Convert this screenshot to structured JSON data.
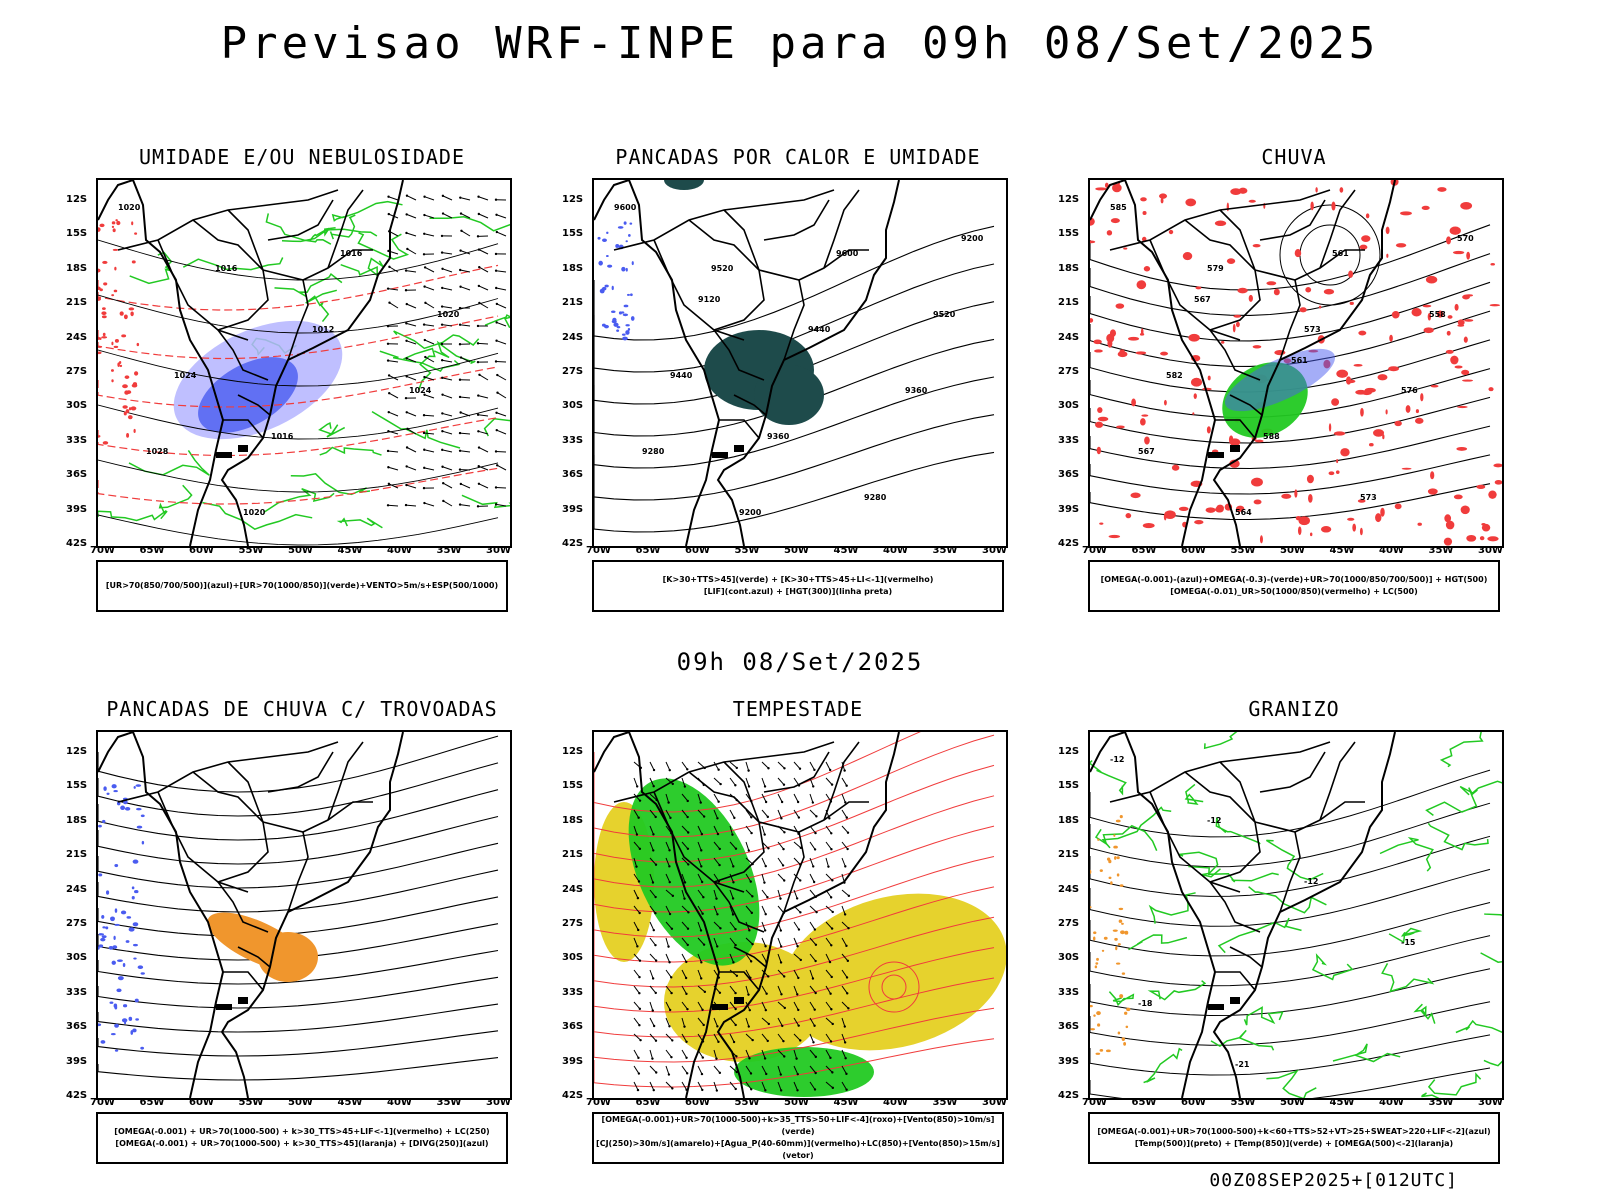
{
  "title": "Previsao WRF-INPE  para 09h 08/Set/2025",
  "subtitle": "09h 08/Set/2025",
  "footer": "00Z08SEP2025+[012UTC]",
  "axes": {
    "lat_labels": [
      "12S",
      "15S",
      "18S",
      "21S",
      "24S",
      "27S",
      "30S",
      "33S",
      "36S",
      "39S",
      "42S"
    ],
    "lon_labels": [
      "70W",
      "65W",
      "60W",
      "55W",
      "50W",
      "45W",
      "40W",
      "35W",
      "30W"
    ]
  },
  "colors": {
    "blue": "#4a5cf0",
    "lightblue": "#b4b4ff",
    "green": "#22c922",
    "red": "#f03c3c",
    "darkteal": "#1e4b4b",
    "orange": "#f0962d",
    "yellow": "#e6d22d",
    "contour": "#000000"
  },
  "panels": [
    {
      "title": "UMIDADE E/OU NEBULOSIDADE",
      "legend": [
        "[UR>70(850/700/500)](azul)+[UR>70(1000/850)](verde)+VENTO>5m/s+ESP(500/1000)"
      ],
      "contour_labels": [
        "1020",
        "1016",
        "1012",
        "1024",
        "1028",
        "1020",
        "1016",
        "1020",
        "1024",
        "1016"
      ]
    },
    {
      "title": "PANCADAS POR CALOR E UMIDADE",
      "legend": [
        "[K>30+TTS>45](verde) + [K>30+TTS>45+LI<-1](vermelho)",
        "[LIF](cont.azul) + [HGT(300)](linha preta)"
      ],
      "contour_labels": [
        "9600",
        "9520",
        "9440",
        "9360",
        "9280",
        "9200",
        "9600",
        "9520",
        "9440",
        "9360",
        "9280",
        "9200",
        "9120"
      ]
    },
    {
      "title": "CHUVA",
      "legend": [
        "[OMEGA(-0.001)-(azul)+OMEGA(-0.3)-(verde)+UR>70(1000/850/700/500)] + HGT(500)",
        "[OMEGA(-0.01)_UR>50(1000/850)(vermelho) + LC(500)"
      ],
      "contour_labels": [
        "585",
        "579",
        "573",
        "576",
        "567",
        "564",
        "561",
        "558",
        "582",
        "588",
        "573",
        "570",
        "567",
        "561"
      ]
    },
    {
      "title": "PANCADAS DE CHUVA C/ TROVOADAS",
      "legend": [
        "[OMEGA(-0.001) + UR>70(1000-500) + k>30_TTS>45+LIF<-1](vermelho) + LC(250)",
        "[OMEGA(-0.001) + UR>70(1000-500) + k>30_TTS>45](laranja) + [DIVG(250)](azul)"
      ]
    },
    {
      "title": "TEMPESTADE",
      "legend": [
        "[OMEGA(-0.001)+UR>70(1000-500)+k>35_TTS>50+LIF<-4](roxo)+[Vento(850)>10m/s](verde)",
        "[CJ(250)>30m/s](amarelo)+[Agua_P(40-60mm)](vermelho)+LC(850)+[Vento(850)>15m/s](vetor)"
      ]
    },
    {
      "title": "GRANIZO",
      "legend": [
        "[OMEGA(-0.001)+UR>70(1000-500)+k<60+TTS>52+VT>25+SWEAT>220+LIF<-2](azul)",
        "[Temp(500)](preto) + [Temp(850)](verde) + [OMEGA(500)<-2](laranja)"
      ],
      "contour_labels": [
        "-12",
        "-12",
        "-12",
        "-15",
        "-18",
        "-21"
      ]
    }
  ]
}
